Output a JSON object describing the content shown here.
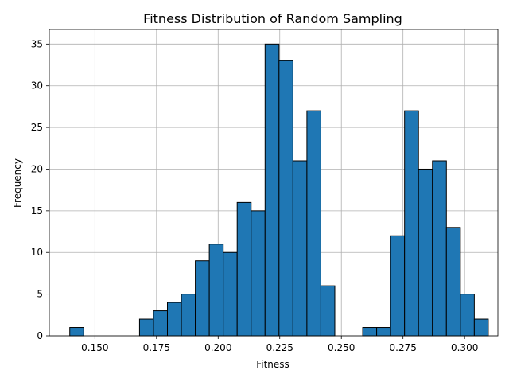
{
  "chart_data": {
    "type": "bar",
    "title": "Fitness Distribution of Random Sampling",
    "xlabel": "Fitness",
    "ylabel": "Frequency",
    "xlim": [
      0.1315,
      0.3135
    ],
    "ylim": [
      0,
      36.75
    ],
    "x_ticks": [
      0.15,
      0.175,
      0.2,
      0.225,
      0.25,
      0.275,
      0.3
    ],
    "x_tick_labels": [
      "0.150",
      "0.175",
      "0.200",
      "0.225",
      "0.250",
      "0.275",
      "0.300"
    ],
    "y_ticks": [
      0,
      5,
      10,
      15,
      20,
      25,
      30,
      35
    ],
    "y_tick_labels": [
      "0",
      "5",
      "10",
      "15",
      "20",
      "25",
      "30",
      "35"
    ],
    "grid": true,
    "bar_color": "#1f77b4",
    "edge_color": "#000000",
    "bin_edges": [
      0.1398,
      0.14546,
      0.15112,
      0.15678,
      0.16244,
      0.1681,
      0.17376,
      0.17942,
      0.18508,
      0.19074,
      0.1964,
      0.20206,
      0.20772,
      0.21338,
      0.21904,
      0.2247,
      0.23036,
      0.23602,
      0.24168,
      0.24734,
      0.253,
      0.25866,
      0.26432,
      0.26998,
      0.27564,
      0.2813,
      0.28696,
      0.29262,
      0.29828,
      0.30394,
      0.3096
    ],
    "values": [
      1,
      0,
      0,
      0,
      0,
      2,
      3,
      4,
      5,
      9,
      11,
      10,
      16,
      15,
      35,
      33,
      21,
      27,
      6,
      0,
      0,
      1,
      1,
      12,
      27,
      20,
      21,
      13,
      5,
      2
    ]
  }
}
